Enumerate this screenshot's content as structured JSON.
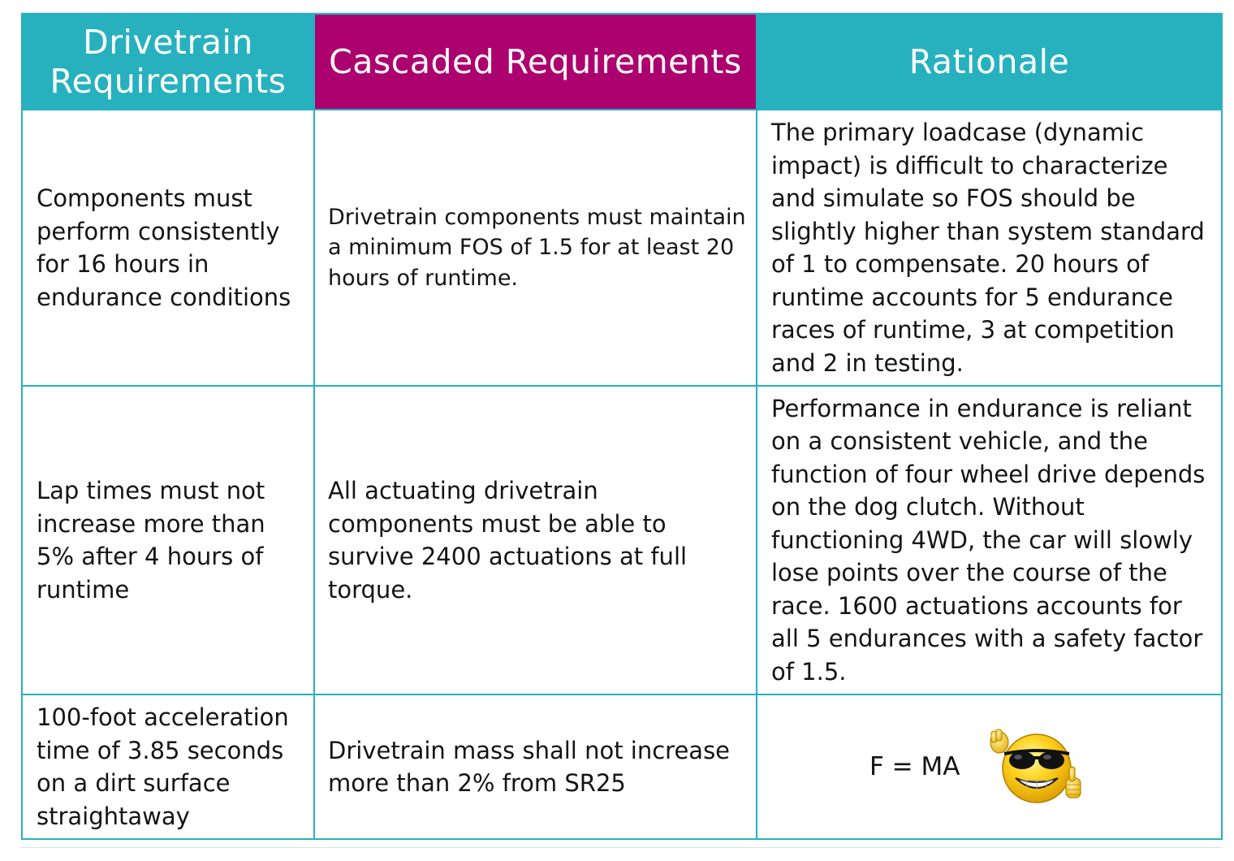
{
  "table": {
    "headers": [
      "Drivetrain Requirements",
      "Cascaded Requirements",
      "Rationale"
    ],
    "rows": [
      {
        "drivetrain": "Components must perform consistently for 16 hours in endurance conditions",
        "cascaded": "Drivetrain components must maintain a minimum FOS of 1.5 for at least 20 hours of runtime.",
        "rationale": "The primary loadcase (dynamic impact) is difficult to characterize and simulate so FOS should be slightly higher than system standard of 1 to compensate. 20 hours of runtime accounts for 5 endurance races of runtime, 3 at competition and 2 in testing."
      },
      {
        "drivetrain": "Lap times must not increase more than 5% after 4 hours of runtime",
        "cascaded": "All actuating drivetrain components must be able to survive 2400 actuations at full torque.",
        "rationale": "Performance in endurance is reliant on a consistent vehicle, and the function of four wheel drive depends on the dog clutch. Without functioning 4WD, the car will slowly lose points over the course of the race. 1600 actuations accounts for all 5 endurances with a safety factor of 1.5."
      },
      {
        "drivetrain": "100-foot acceleration time of 3.85 seconds on a dirt surface straightaway",
        "cascaded": "Drivetrain mass shall not increase more than 2% from SR25",
        "rationale": "F = MA",
        "rationale_icon": "cool-smiley-thumbs-up-icon"
      }
    ]
  },
  "colors": {
    "header_teal": "#27b1bf",
    "header_magenta": "#ad006f",
    "border": "#29b0c0"
  }
}
